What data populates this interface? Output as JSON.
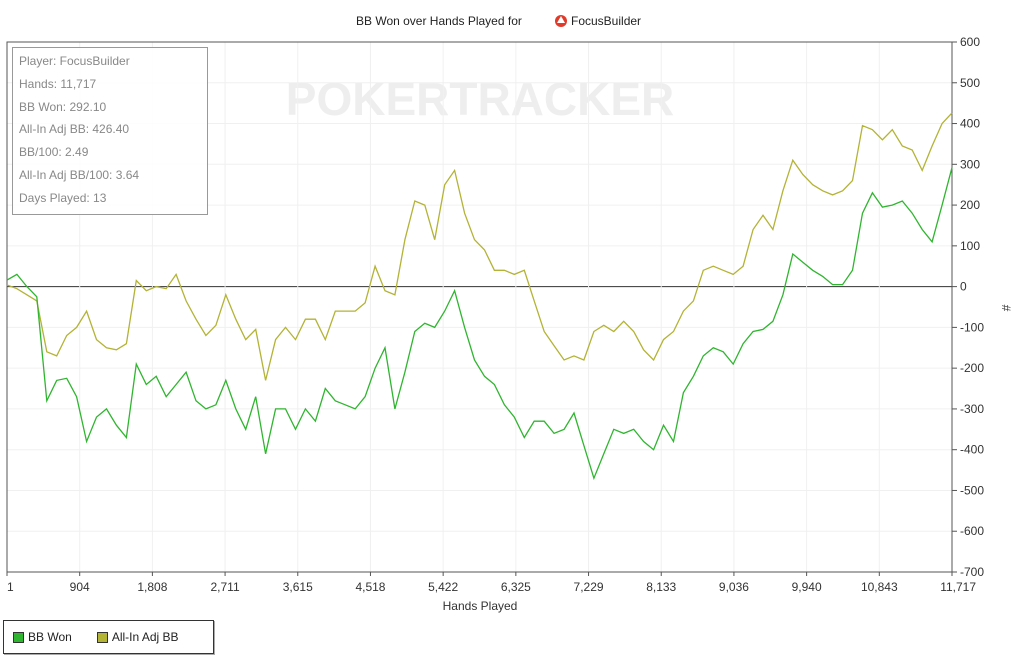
{
  "chart_data": {
    "type": "line",
    "title_prefix": "BB Won over Hands Played for",
    "title_player": "FocusBuilder",
    "xlabel": "Hands Played",
    "ylabel": "#",
    "xlim": [
      1,
      11717
    ],
    "ylim": [
      -700,
      600
    ],
    "x_ticks": [
      "1",
      "904",
      "1,808",
      "2,711",
      "3,615",
      "4,518",
      "5,422",
      "6,325",
      "7,229",
      "8,133",
      "9,036",
      "9,940",
      "10,843",
      "11,717"
    ],
    "y_ticks": [
      600,
      500,
      400,
      300,
      200,
      100,
      0,
      -100,
      -200,
      -300,
      -400,
      -500,
      -600,
      -700
    ],
    "grid": true,
    "legend_position": "bottom-left",
    "watermark": "POKERTRACKER",
    "series": [
      {
        "name": "BB Won",
        "color": "#2fb52f",
        "values": [
          16,
          30,
          0,
          -25,
          -280,
          -230,
          -225,
          -270,
          -380,
          -320,
          -300,
          -340,
          -370,
          -190,
          -240,
          -220,
          -270,
          -240,
          -210,
          -280,
          -300,
          -290,
          -230,
          -300,
          -350,
          -270,
          -410,
          -300,
          -300,
          -350,
          -300,
          -330,
          -250,
          -280,
          -290,
          -300,
          -270,
          -200,
          -150,
          -300,
          -210,
          -110,
          -90,
          -100,
          -60,
          -10,
          -100,
          -180,
          -220,
          -240,
          -290,
          -320,
          -370,
          -330,
          -330,
          -360,
          -350,
          -310,
          -390,
          -470,
          -410,
          -350,
          -360,
          -350,
          -380,
          -400,
          -340,
          -380,
          -260,
          -220,
          -170,
          -150,
          -160,
          -190,
          -140,
          -110,
          -105,
          -85,
          -20,
          80,
          60,
          40,
          25,
          5,
          5,
          40,
          180,
          230,
          195,
          200,
          210,
          180,
          140,
          110,
          200,
          292
        ]
      },
      {
        "name": "All-In Adj BB",
        "color": "#b3b335",
        "values": [
          4,
          -5,
          -20,
          -35,
          -160,
          -170,
          -120,
          -100,
          -60,
          -130,
          -150,
          -155,
          -140,
          15,
          -10,
          0,
          -5,
          30,
          -35,
          -80,
          -120,
          -95,
          -20,
          -80,
          -130,
          -105,
          -230,
          -130,
          -100,
          -130,
          -80,
          -80,
          -130,
          -60,
          -60,
          -60,
          -40,
          50,
          -10,
          -20,
          115,
          210,
          200,
          115,
          250,
          285,
          180,
          115,
          90,
          40,
          40,
          30,
          40,
          -35,
          -110,
          -145,
          -180,
          -170,
          -180,
          -110,
          -95,
          -110,
          -85,
          -110,
          -155,
          -180,
          -130,
          -110,
          -60,
          -35,
          40,
          50,
          40,
          30,
          50,
          140,
          175,
          140,
          235,
          310,
          275,
          250,
          235,
          225,
          235,
          260,
          395,
          385,
          360,
          385,
          345,
          335,
          285,
          345,
          400,
          426
        ]
      }
    ]
  },
  "stats": {
    "player": "Player: FocusBuilder",
    "hands": "Hands: 11,717",
    "bb_won": "BB Won: 292.10",
    "allin_adj_bb": "All-In Adj BB: 426.40",
    "bb100": "BB/100: 2.49",
    "allin_adj_bb100": "All-In Adj BB/100: 3.64",
    "days_played": "Days Played: 13"
  }
}
